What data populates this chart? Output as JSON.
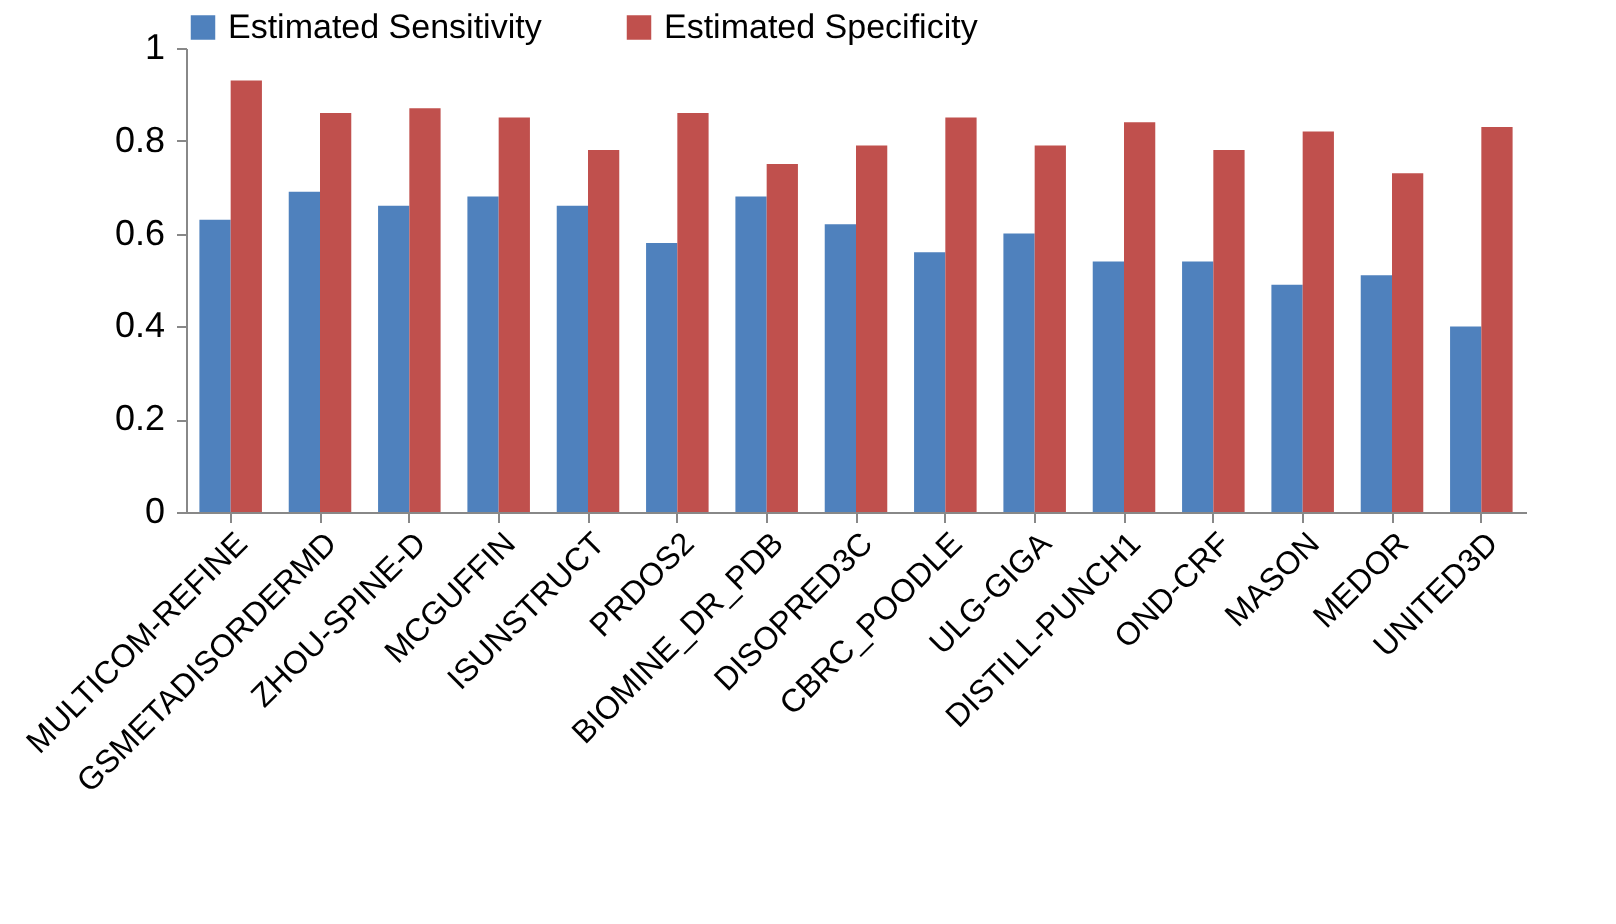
{
  "chart_data": {
    "type": "bar",
    "categories": [
      "MULTICOM-REFINE",
      "GSMETADISORDERMD",
      "ZHOU-SPINE-D",
      "MCGUFFIN",
      "ISUNSTRUCT",
      "PRDOS2",
      "BIOMINE_DR_PDB",
      "DISOPRED3C",
      "CBRC_POODLE",
      "ULG-GIGA",
      "DISTILL-PUNCH1",
      "OND-CRF",
      "MASON",
      "MEDOR",
      "UNITED3D"
    ],
    "series": [
      {
        "name": "Estimated Sensitivity",
        "color": "#4f81bd",
        "values": [
          0.63,
          0.69,
          0.66,
          0.68,
          0.66,
          0.58,
          0.68,
          0.62,
          0.56,
          0.6,
          0.54,
          0.54,
          0.49,
          0.51,
          0.4
        ]
      },
      {
        "name": "Estimated Specificity",
        "color": "#c0504d",
        "values": [
          0.93,
          0.86,
          0.87,
          0.85,
          0.78,
          0.86,
          0.75,
          0.79,
          0.85,
          0.79,
          0.84,
          0.78,
          0.82,
          0.73,
          0.83
        ]
      }
    ],
    "ylim": [
      0,
      1
    ],
    "yticks": [
      0,
      0.2,
      0.4,
      0.6,
      0.8,
      1
    ],
    "legend": "top",
    "grid": false
  }
}
